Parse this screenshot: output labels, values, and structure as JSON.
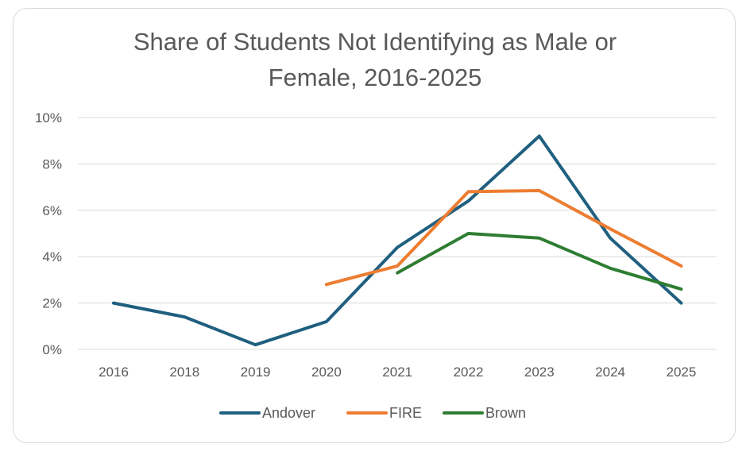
{
  "chart_data": {
    "type": "line",
    "title_lines": [
      "Share of Students Not Identifying as Male or",
      "Female, 2016-2025"
    ],
    "title": "Share of Students Not Identifying as Male or Female, 2016-2025",
    "categories": [
      "2016",
      "2018",
      "2019",
      "2020",
      "2021",
      "2022",
      "2023",
      "2024",
      "2025"
    ],
    "ylim": [
      0,
      10
    ],
    "yticks": [
      0,
      2,
      4,
      6,
      8,
      10
    ],
    "ytick_labels": [
      "0%",
      "2%",
      "4%",
      "6%",
      "8%",
      "10%"
    ],
    "xlabel": "",
    "ylabel": "",
    "grid": true,
    "legend_position": "bottom",
    "series": [
      {
        "name": "Andover",
        "color": "#1f5f7f",
        "values": [
          2.0,
          1.4,
          0.2,
          1.2,
          4.4,
          6.4,
          9.2,
          4.8,
          2.0
        ]
      },
      {
        "name": "FIRE",
        "color": "#ed7d31",
        "values": [
          null,
          null,
          null,
          2.8,
          3.6,
          6.8,
          6.85,
          5.2,
          3.6
        ]
      },
      {
        "name": "Brown",
        "color": "#2e7d32",
        "values": [
          null,
          null,
          null,
          null,
          3.3,
          5.0,
          4.8,
          3.5,
          2.6
        ]
      }
    ]
  }
}
